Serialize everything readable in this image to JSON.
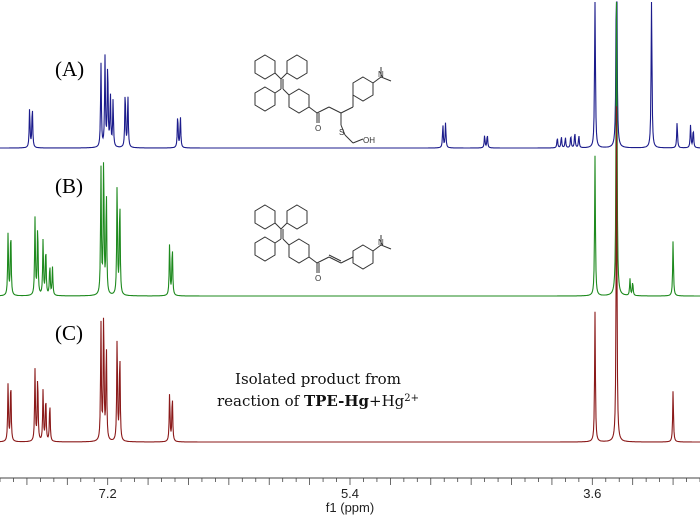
{
  "chart_data": {
    "type": "line",
    "title": "",
    "xlabel": "f1 (ppm)",
    "ylabel": "",
    "xlim": [
      8.0,
      2.8
    ],
    "x_reversed": true,
    "x_ticks": [
      7.2,
      5.4,
      3.6
    ],
    "series": [
      {
        "label": "(A)",
        "color": "#1c1c8c",
        "peaks": [
          {
            "x": 7.78,
            "h": 0.38
          },
          {
            "x": 7.76,
            "h": 0.4
          },
          {
            "x": 7.25,
            "h": 0.8
          },
          {
            "x": 7.22,
            "h": 0.85
          },
          {
            "x": 7.2,
            "h": 0.82
          },
          {
            "x": 7.18,
            "h": 0.5
          },
          {
            "x": 7.16,
            "h": 0.45
          },
          {
            "x": 7.07,
            "h": 0.55
          },
          {
            "x": 7.05,
            "h": 0.5
          },
          {
            "x": 6.68,
            "h": 0.32
          },
          {
            "x": 6.66,
            "h": 0.3
          },
          {
            "x": 4.71,
            "h": 0.22
          },
          {
            "x": 4.69,
            "h": 0.24
          },
          {
            "x": 4.4,
            "h": 0.12
          },
          {
            "x": 4.38,
            "h": 0.13
          },
          {
            "x": 3.86,
            "h": 0.1
          },
          {
            "x": 3.83,
            "h": 0.11
          },
          {
            "x": 3.8,
            "h": 0.1
          },
          {
            "x": 3.76,
            "h": 0.12
          },
          {
            "x": 3.73,
            "h": 0.15
          },
          {
            "x": 3.7,
            "h": 0.12
          },
          {
            "x": 3.58,
            "h": 1.6
          },
          {
            "x": 3.42,
            "h": 2.8
          },
          {
            "x": 3.16,
            "h": 1.6
          },
          {
            "x": 2.97,
            "h": 0.25
          },
          {
            "x": 2.87,
            "h": 0.22
          },
          {
            "x": 2.85,
            "h": 0.18
          }
        ]
      },
      {
        "label": "(B)",
        "color": "#1e8a1e",
        "peaks": [
          {
            "x": 7.94,
            "h": 0.45
          },
          {
            "x": 7.92,
            "h": 0.48
          },
          {
            "x": 7.74,
            "h": 0.55
          },
          {
            "x": 7.72,
            "h": 0.52
          },
          {
            "x": 7.68,
            "h": 0.4
          },
          {
            "x": 7.66,
            "h": 0.35
          },
          {
            "x": 7.63,
            "h": 0.22
          },
          {
            "x": 7.61,
            "h": 0.2
          },
          {
            "x": 7.25,
            "h": 0.9
          },
          {
            "x": 7.23,
            "h": 1.0
          },
          {
            "x": 7.21,
            "h": 0.75
          },
          {
            "x": 7.13,
            "h": 0.8
          },
          {
            "x": 7.11,
            "h": 0.7
          },
          {
            "x": 6.74,
            "h": 0.38
          },
          {
            "x": 6.72,
            "h": 0.36
          },
          {
            "x": 3.58,
            "h": 1.0
          },
          {
            "x": 3.42,
            "h": 2.8
          },
          {
            "x": 3.32,
            "h": 0.12
          },
          {
            "x": 3.3,
            "h": 0.1
          },
          {
            "x": 3.0,
            "h": 0.4
          }
        ]
      },
      {
        "label": "(C)",
        "color": "#8b1a1a",
        "peaks": [
          {
            "x": 7.94,
            "h": 0.45
          },
          {
            "x": 7.92,
            "h": 0.48
          },
          {
            "x": 7.74,
            "h": 0.55
          },
          {
            "x": 7.72,
            "h": 0.52
          },
          {
            "x": 7.68,
            "h": 0.4
          },
          {
            "x": 7.66,
            "h": 0.35
          },
          {
            "x": 7.63,
            "h": 0.3
          },
          {
            "x": 7.25,
            "h": 0.9
          },
          {
            "x": 7.23,
            "h": 1.0
          },
          {
            "x": 7.21,
            "h": 0.75
          },
          {
            "x": 7.13,
            "h": 0.8
          },
          {
            "x": 7.11,
            "h": 0.7
          },
          {
            "x": 6.74,
            "h": 0.38
          },
          {
            "x": 6.72,
            "h": 0.36
          },
          {
            "x": 3.58,
            "h": 1.0
          },
          {
            "x": 3.42,
            "h": 2.6
          },
          {
            "x": 3.0,
            "h": 0.4
          }
        ]
      }
    ],
    "annotations": {
      "caption_line1": "Isolated product from",
      "caption_line2_prefix": "reaction of ",
      "caption_line2_bold": "TPE-Hg",
      "caption_line2_mid": "+Hg",
      "caption_line2_sup": "2+",
      "struct_A_labels": [
        "N",
        "O",
        "S",
        "OH"
      ],
      "struct_B_labels": [
        "N",
        "O"
      ]
    }
  }
}
